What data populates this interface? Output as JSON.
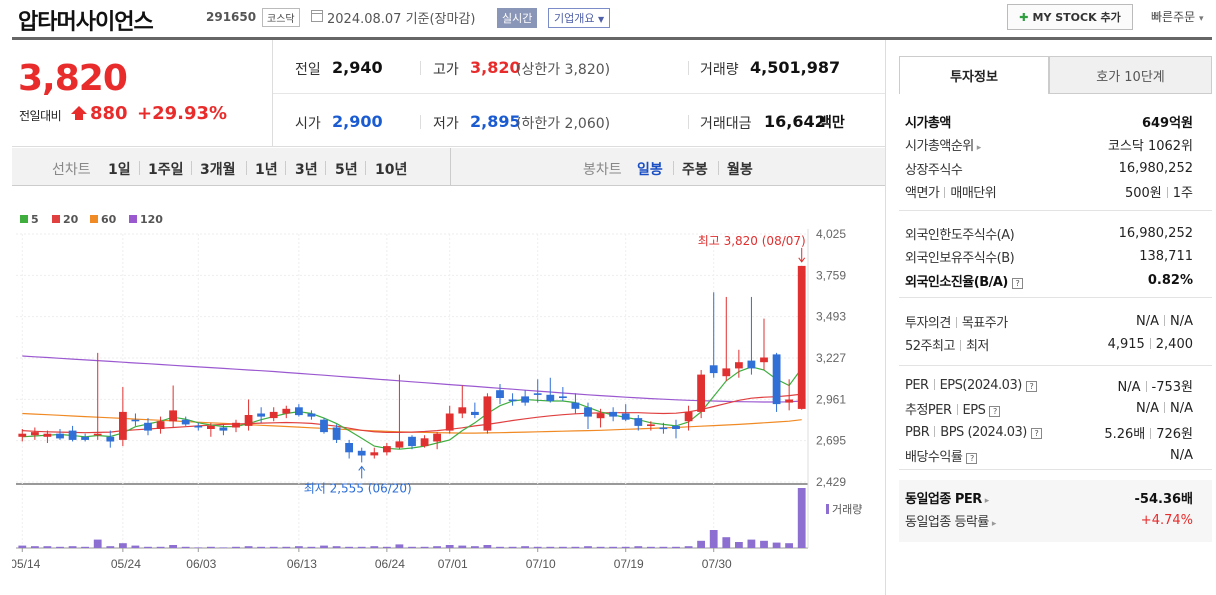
{
  "header": {
    "company_name": "압타머사이언스",
    "stock_code": "291650",
    "market": "코스닥",
    "date_text": "2024.08.07  기준(장마감)",
    "realtime_label": "실시간",
    "overview_label": "기업개요",
    "mystock_label": "MY STOCK 추가",
    "quick_order_label": "빠른주문"
  },
  "price": {
    "current": "3,820",
    "change_label": "전일대비",
    "change_amount": "880",
    "change_rate": "+29.93%",
    "prev_close_label": "전일",
    "prev_close": "2,940",
    "high_label": "고가",
    "high": "3,820",
    "upper_limit": "(상한가 3,820)",
    "volume_label": "거래량",
    "volume": "4,501,987",
    "open_label": "시가",
    "open": "2,900",
    "low_label": "저가",
    "low": "2,895",
    "lower_limit": "(하한가 2,060)",
    "amount_label": "거래대금",
    "amount": "16,642",
    "amount_unit": "백만"
  },
  "chart_tabs": {
    "line_label": "선차트",
    "line_periods": [
      "1일",
      "1주일",
      "3개월",
      "1년",
      "3년",
      "5년",
      "10년"
    ],
    "candle_label": "봉차트",
    "candle_periods": [
      "일봉",
      "주봉",
      "월봉"
    ],
    "candle_active": "일봉"
  },
  "chart_data": {
    "type": "candlestick",
    "legend": [
      {
        "name": "5",
        "color": "#3fae3f"
      },
      {
        "name": "20",
        "color": "#e04040"
      },
      {
        "name": "60",
        "color": "#f08a24"
      },
      {
        "name": "120",
        "color": "#9b59d0"
      }
    ],
    "y_ticks": [
      "4,025",
      "3,759",
      "3,493",
      "3,227",
      "2,961",
      "2,695",
      "2,429"
    ],
    "ylim": [
      2429,
      4025
    ],
    "x_ticks": [
      {
        "label": "05/14",
        "index": 0
      },
      {
        "label": "05/24",
        "index": 8
      },
      {
        "label": "06/03",
        "index": 14
      },
      {
        "label": "06/13",
        "index": 22
      },
      {
        "label": "06/24",
        "index": 29
      },
      {
        "label": "07/01",
        "index": 34
      },
      {
        "label": "07/10",
        "index": 41
      },
      {
        "label": "07/19",
        "index": 48
      },
      {
        "label": "07/30",
        "index": 55
      }
    ],
    "high_annotation": "최고 3,820 (08/07)",
    "low_annotation": "최저 2,555 (06/20)",
    "volume_label": "거래량",
    "candles": [
      {
        "o": 2720,
        "h": 2770,
        "l": 2690,
        "c": 2740
      },
      {
        "o": 2730,
        "h": 2780,
        "l": 2700,
        "c": 2750
      },
      {
        "o": 2720,
        "h": 2760,
        "l": 2680,
        "c": 2740
      },
      {
        "o": 2740,
        "h": 2770,
        "l": 2700,
        "c": 2710
      },
      {
        "o": 2760,
        "h": 2790,
        "l": 2690,
        "c": 2700
      },
      {
        "o": 2720,
        "h": 2740,
        "l": 2690,
        "c": 2700
      },
      {
        "o": 2730,
        "h": 3260,
        "l": 2700,
        "c": 2740
      },
      {
        "o": 2720,
        "h": 2760,
        "l": 2650,
        "c": 2690
      },
      {
        "o": 2700,
        "h": 3040,
        "l": 2660,
        "c": 2880
      },
      {
        "o": 2830,
        "h": 2870,
        "l": 2790,
        "c": 2820
      },
      {
        "o": 2810,
        "h": 2840,
        "l": 2730,
        "c": 2760
      },
      {
        "o": 2770,
        "h": 2850,
        "l": 2740,
        "c": 2820
      },
      {
        "o": 2820,
        "h": 3050,
        "l": 2780,
        "c": 2890
      },
      {
        "o": 2830,
        "h": 2850,
        "l": 2790,
        "c": 2800
      },
      {
        "o": 2790,
        "h": 2810,
        "l": 2760,
        "c": 2780
      },
      {
        "o": 2770,
        "h": 2810,
        "l": 2720,
        "c": 2790
      },
      {
        "o": 2780,
        "h": 2800,
        "l": 2730,
        "c": 2760
      },
      {
        "o": 2780,
        "h": 2830,
        "l": 2750,
        "c": 2810
      },
      {
        "o": 2790,
        "h": 2960,
        "l": 2760,
        "c": 2860
      },
      {
        "o": 2870,
        "h": 2910,
        "l": 2810,
        "c": 2850
      },
      {
        "o": 2840,
        "h": 2910,
        "l": 2820,
        "c": 2880
      },
      {
        "o": 2870,
        "h": 2920,
        "l": 2840,
        "c": 2900
      },
      {
        "o": 2910,
        "h": 2930,
        "l": 2850,
        "c": 2860
      },
      {
        "o": 2870,
        "h": 2890,
        "l": 2830,
        "c": 2850
      },
      {
        "o": 2830,
        "h": 2840,
        "l": 2740,
        "c": 2750
      },
      {
        "o": 2780,
        "h": 2800,
        "l": 2680,
        "c": 2700
      },
      {
        "o": 2680,
        "h": 2700,
        "l": 2580,
        "c": 2620
      },
      {
        "o": 2630,
        "h": 2650,
        "l": 2555,
        "c": 2600
      },
      {
        "o": 2600,
        "h": 2650,
        "l": 2580,
        "c": 2620
      },
      {
        "o": 2620,
        "h": 2680,
        "l": 2600,
        "c": 2660
      },
      {
        "o": 2650,
        "h": 3120,
        "l": 2640,
        "c": 2690
      },
      {
        "o": 2720,
        "h": 2730,
        "l": 2640,
        "c": 2660
      },
      {
        "o": 2660,
        "h": 2730,
        "l": 2650,
        "c": 2710
      },
      {
        "o": 2690,
        "h": 2750,
        "l": 2640,
        "c": 2740
      },
      {
        "o": 2760,
        "h": 2920,
        "l": 2740,
        "c": 2870
      },
      {
        "o": 2870,
        "h": 3050,
        "l": 2840,
        "c": 2910
      },
      {
        "o": 2880,
        "h": 2940,
        "l": 2840,
        "c": 2860
      },
      {
        "o": 2760,
        "h": 3000,
        "l": 2740,
        "c": 2980
      },
      {
        "o": 3020,
        "h": 3060,
        "l": 2930,
        "c": 2970
      },
      {
        "o": 2960,
        "h": 3000,
        "l": 2920,
        "c": 2950
      },
      {
        "o": 2980,
        "h": 3020,
        "l": 2920,
        "c": 2940
      },
      {
        "o": 3000,
        "h": 3090,
        "l": 2940,
        "c": 2990
      },
      {
        "o": 2990,
        "h": 3100,
        "l": 2940,
        "c": 2950
      },
      {
        "o": 2980,
        "h": 3040,
        "l": 2950,
        "c": 2970
      },
      {
        "o": 2940,
        "h": 3000,
        "l": 2870,
        "c": 2900
      },
      {
        "o": 2910,
        "h": 2940,
        "l": 2770,
        "c": 2850
      },
      {
        "o": 2840,
        "h": 2900,
        "l": 2780,
        "c": 2870
      },
      {
        "o": 2880,
        "h": 2910,
        "l": 2820,
        "c": 2850
      },
      {
        "o": 2870,
        "h": 2930,
        "l": 2820,
        "c": 2830
      },
      {
        "o": 2840,
        "h": 2860,
        "l": 2760,
        "c": 2790
      },
      {
        "o": 2790,
        "h": 2820,
        "l": 2760,
        "c": 2800
      },
      {
        "o": 2780,
        "h": 2810,
        "l": 2740,
        "c": 2770
      },
      {
        "o": 2790,
        "h": 2830,
        "l": 2710,
        "c": 2770
      },
      {
        "o": 2820,
        "h": 2920,
        "l": 2760,
        "c": 2880
      },
      {
        "o": 2880,
        "h": 3150,
        "l": 2840,
        "c": 3120
      },
      {
        "o": 3180,
        "h": 3650,
        "l": 3100,
        "c": 3130
      },
      {
        "o": 3110,
        "h": 3620,
        "l": 3080,
        "c": 3160
      },
      {
        "o": 3160,
        "h": 3280,
        "l": 3100,
        "c": 3200
      },
      {
        "o": 3210,
        "h": 3620,
        "l": 3120,
        "c": 3160
      },
      {
        "o": 3200,
        "h": 3480,
        "l": 3150,
        "c": 3230
      },
      {
        "o": 3250,
        "h": 3260,
        "l": 2880,
        "c": 2930
      },
      {
        "o": 2940,
        "h": 3090,
        "l": 2890,
        "c": 2960
      },
      {
        "o": 2900,
        "h": 3820,
        "l": 2895,
        "c": 3820
      }
    ],
    "volume": [
      4,
      3,
      3,
      2,
      3,
      2,
      14,
      3,
      8,
      4,
      2,
      2,
      5,
      2,
      1,
      2,
      1,
      2,
      3,
      2,
      2,
      2,
      3,
      2,
      4,
      3,
      2,
      2,
      3,
      2,
      6,
      2,
      2,
      3,
      5,
      4,
      3,
      5,
      2,
      2,
      3,
      2,
      2,
      2,
      2,
      3,
      2,
      2,
      2,
      3,
      2,
      2,
      2,
      3,
      12,
      30,
      18,
      10,
      14,
      12,
      9,
      8,
      100
    ],
    "ma5": [
      2720,
      2725,
      2730,
      2735,
      2728,
      2720,
      2728,
      2722,
      2745,
      2785,
      2802,
      2820,
      2846,
      2833,
      2810,
      2796,
      2786,
      2785,
      2805,
      2830,
      2850,
      2870,
      2882,
      2870,
      2840,
      2805,
      2760,
      2710,
      2660,
      2645,
      2640,
      2648,
      2660,
      2680,
      2700,
      2760,
      2810,
      2870,
      2920,
      2950,
      2960,
      2955,
      2950,
      2950,
      2940,
      2910,
      2880,
      2860,
      2845,
      2830,
      2810,
      2800,
      2790,
      2815,
      2880,
      2980,
      3080,
      3140,
      3170,
      3150,
      3090,
      3050,
      3160
    ],
    "ma20": [
      2760,
      2755,
      2752,
      2750,
      2748,
      2746,
      2748,
      2750,
      2760,
      2765,
      2770,
      2775,
      2780,
      2785,
      2790,
      2795,
      2800,
      2802,
      2805,
      2808,
      2810,
      2812,
      2810,
      2806,
      2798,
      2788,
      2775,
      2762,
      2752,
      2748,
      2748,
      2750,
      2754,
      2760,
      2768,
      2778,
      2790,
      2800,
      2812,
      2825,
      2836,
      2846,
      2855,
      2862,
      2868,
      2872,
      2874,
      2875,
      2875,
      2875,
      2872,
      2870,
      2872,
      2880,
      2895,
      2915,
      2935,
      2955,
      2968,
      2975,
      2978,
      2985,
      2995
    ],
    "ma60": [
      2870,
      2866,
      2862,
      2858,
      2854,
      2850,
      2846,
      2842,
      2838,
      2834,
      2830,
      2826,
      2822,
      2818,
      2814,
      2810,
      2806,
      2802,
      2798,
      2794,
      2790,
      2786,
      2782,
      2778,
      2774,
      2770,
      2766,
      2762,
      2758,
      2755,
      2752,
      2750,
      2748,
      2746,
      2745,
      2744,
      2744,
      2745,
      2746,
      2748,
      2750,
      2752,
      2754,
      2756,
      2758,
      2760,
      2762,
      2765,
      2768,
      2771,
      2774,
      2777,
      2780,
      2784,
      2788,
      2792,
      2796,
      2800,
      2805,
      2810,
      2815,
      2820,
      2830
    ],
    "ma120": [
      3240,
      3235,
      3230,
      3225,
      3220,
      3215,
      3210,
      3205,
      3200,
      3195,
      3190,
      3185,
      3180,
      3175,
      3170,
      3165,
      3160,
      3155,
      3150,
      3145,
      3140,
      3134,
      3128,
      3122,
      3116,
      3110,
      3104,
      3098,
      3092,
      3086,
      3080,
      3074,
      3068,
      3062,
      3056,
      3050,
      3044,
      3038,
      3032,
      3026,
      3020,
      3014,
      3008,
      3002,
      2996,
      2990,
      2985,
      2980,
      2975,
      2970,
      2966,
      2962,
      2958,
      2955,
      2952,
      2950,
      2948,
      2946,
      2945,
      2944,
      2944,
      2945,
      2950
    ]
  },
  "side": {
    "tab_active": "투자정보",
    "tab_other": "호가 10단계",
    "group1": [
      {
        "k": "시가총액",
        "v": "649억원",
        "bold": true
      },
      {
        "k": "시가총액순위",
        "v": "코스닥 1062위"
      },
      {
        "k": "상장주식수",
        "v": "16,980,252"
      },
      {
        "k": "액면가",
        "k2": "매매단위",
        "v": "500원",
        "v2": "1주"
      }
    ],
    "group2": [
      {
        "k": "외국인한도주식수(A)",
        "v": "16,980,252"
      },
      {
        "k": "외국인보유주식수(B)",
        "v": "138,711"
      },
      {
        "k": "외국인소진율(B/A)",
        "v": "0.82%",
        "bold": true
      }
    ],
    "group3": [
      {
        "k": "투자의견",
        "k2": "목표주가",
        "v": "N/A",
        "v2": "N/A"
      },
      {
        "k": "52주최고",
        "k2": "최저",
        "v": "4,915",
        "v2": "2,400"
      }
    ],
    "group4": [
      {
        "k": "PER",
        "k2": "EPS(2024.03)",
        "v": "N/A",
        "v2": "-753원"
      },
      {
        "k": "추정PER",
        "k2": "EPS",
        "v": "N/A",
        "v2": "N/A"
      },
      {
        "k": "PBR",
        "k2": "BPS (2024.03)",
        "v": "5.26배",
        "v2": "726원"
      },
      {
        "k": "배당수익률",
        "v": "N/A"
      }
    ],
    "group5": [
      {
        "k": "동일업종 PER",
        "v": "-54.36배",
        "bold": true
      },
      {
        "k": "동일업종 등락률",
        "v": "+4.74%",
        "red": true
      }
    ]
  }
}
